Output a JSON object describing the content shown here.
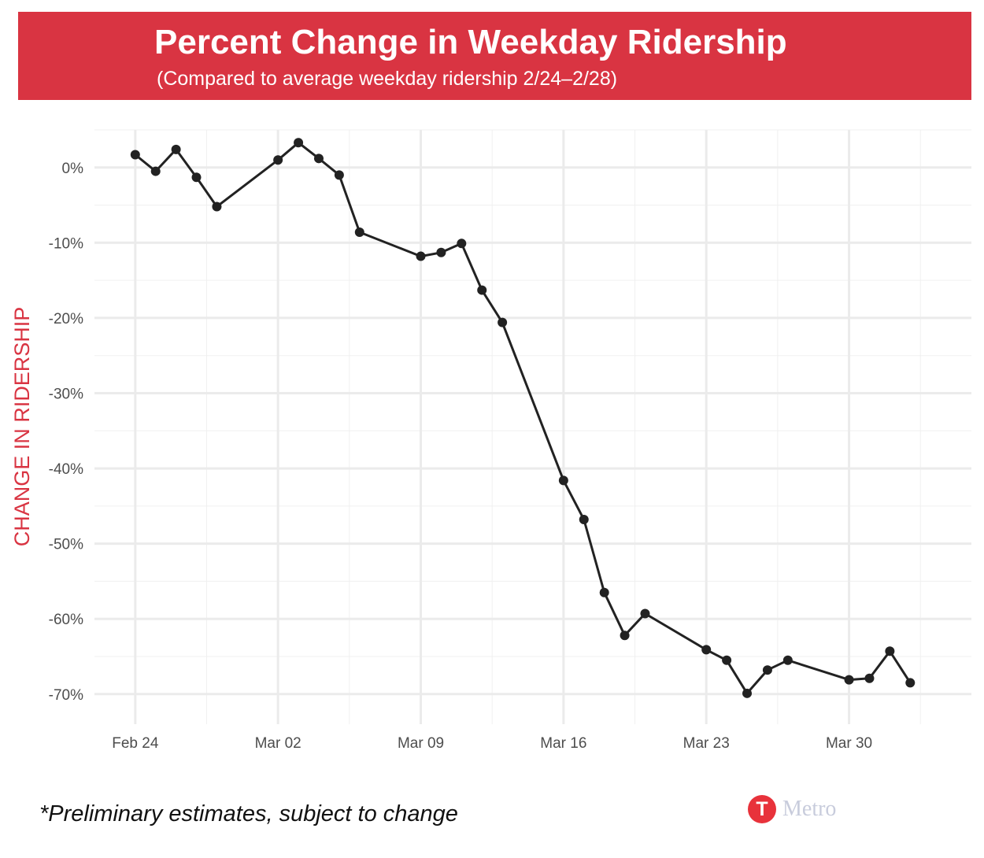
{
  "header": {
    "title": "Percent Change in Weekday Ridership",
    "subtitle": "(Compared to average weekday ridership 2/24–2/28)",
    "background": "#d93442"
  },
  "footnote": "*Preliminary estimates, subject to change",
  "logo": {
    "letter": "T",
    "wordmark": "Metro",
    "color": "#e8323b"
  },
  "chart_data": {
    "type": "line",
    "title": "Percent Change in Weekday Ridership",
    "subtitle": "(Compared to average weekday ridership 2/24–2/28)",
    "xlabel": "",
    "ylabel": "CHANGE IN RIDERSHIP",
    "ylabel_color": "#d93442",
    "line_color": "#222222",
    "grid": true,
    "legend": "none",
    "xlim": [
      "2020-02-22",
      "2020-04-05"
    ],
    "ylim": [
      -74,
      5
    ],
    "x_ticks": [
      {
        "x": "2020-02-24",
        "label": "Feb 24"
      },
      {
        "x": "2020-03-02",
        "label": "Mar 02"
      },
      {
        "x": "2020-03-09",
        "label": "Mar 09"
      },
      {
        "x": "2020-03-16",
        "label": "Mar 16"
      },
      {
        "x": "2020-03-23",
        "label": "Mar 23"
      },
      {
        "x": "2020-03-30",
        "label": "Mar 30"
      }
    ],
    "y_ticks": [
      {
        "y": 0,
        "label": "0%"
      },
      {
        "y": -10,
        "label": "-10%"
      },
      {
        "y": -20,
        "label": "-20%"
      },
      {
        "y": -30,
        "label": "-30%"
      },
      {
        "y": -40,
        "label": "-40%"
      },
      {
        "y": -50,
        "label": "-50%"
      },
      {
        "y": -60,
        "label": "-60%"
      },
      {
        "y": -70,
        "label": "-70%"
      }
    ],
    "series": [
      {
        "points": [
          {
            "x": "2020-02-24",
            "y": 1.7
          },
          {
            "x": "2020-02-25",
            "y": -0.5
          },
          {
            "x": "2020-02-26",
            "y": 2.4
          },
          {
            "x": "2020-02-27",
            "y": -1.3
          },
          {
            "x": "2020-02-28",
            "y": -5.2
          },
          {
            "x": "2020-03-02",
            "y": 1.0
          },
          {
            "x": "2020-03-03",
            "y": 3.3
          },
          {
            "x": "2020-03-04",
            "y": 1.2
          },
          {
            "x": "2020-03-05",
            "y": -1.0
          },
          {
            "x": "2020-03-06",
            "y": -8.6
          },
          {
            "x": "2020-03-09",
            "y": -11.8
          },
          {
            "x": "2020-03-10",
            "y": -11.3
          },
          {
            "x": "2020-03-11",
            "y": -10.1
          },
          {
            "x": "2020-03-12",
            "y": -16.3
          },
          {
            "x": "2020-03-13",
            "y": -20.6
          },
          {
            "x": "2020-03-16",
            "y": -41.6
          },
          {
            "x": "2020-03-17",
            "y": -46.8
          },
          {
            "x": "2020-03-18",
            "y": -56.5
          },
          {
            "x": "2020-03-19",
            "y": -62.2
          },
          {
            "x": "2020-03-20",
            "y": -59.3
          },
          {
            "x": "2020-03-23",
            "y": -64.1
          },
          {
            "x": "2020-03-24",
            "y": -65.5
          },
          {
            "x": "2020-03-25",
            "y": -69.9
          },
          {
            "x": "2020-03-26",
            "y": -66.8
          },
          {
            "x": "2020-03-27",
            "y": -65.5
          },
          {
            "x": "2020-03-30",
            "y": -68.1
          },
          {
            "x": "2020-03-31",
            "y": -67.9
          },
          {
            "x": "2020-04-01",
            "y": -64.3
          },
          {
            "x": "2020-04-02",
            "y": -68.5
          }
        ]
      }
    ]
  }
}
